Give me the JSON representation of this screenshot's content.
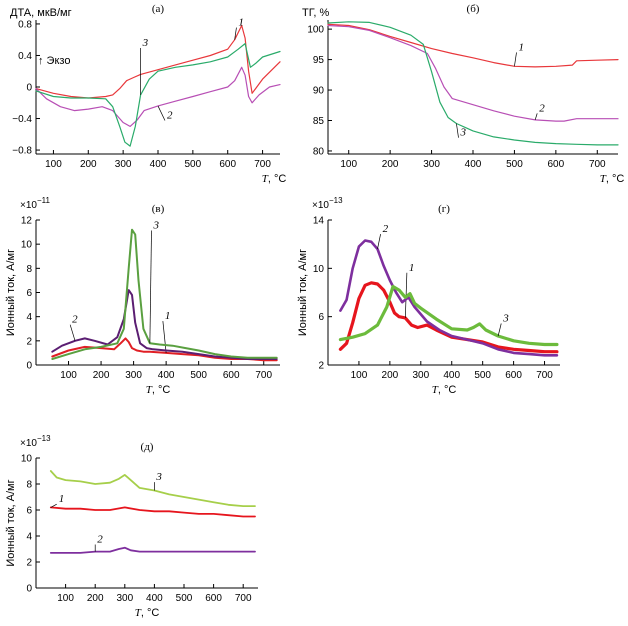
{
  "chart_data": [
    {
      "id": "a",
      "type": "line",
      "panel_label": "(а)",
      "ylabel": "ДТА, мкВ/мг",
      "xlabel_var": "T",
      "xlabel_unit": ", °C",
      "annotation": "↑ Экзо",
      "xlim": [
        50,
        750
      ],
      "ylim": [
        -0.85,
        0.85
      ],
      "xticks": [
        100,
        200,
        300,
        400,
        500,
        600,
        700
      ],
      "yticks": [
        -0.8,
        -0.4,
        0,
        0.4,
        0.8
      ],
      "ytick_labels": [
        "−0.8",
        "−0.4",
        "0",
        "0.4",
        "0.8"
      ],
      "series": [
        {
          "label": "1",
          "color": "#e8373b",
          "width": 1.2,
          "label_pos": [
            625,
            0.78
          ],
          "x": [
            50,
            100,
            150,
            200,
            250,
            270,
            290,
            310,
            330,
            350,
            400,
            450,
            500,
            550,
            600,
            620,
            640,
            650,
            660,
            670,
            680,
            700,
            750
          ],
          "y": [
            -0.02,
            -0.08,
            -0.12,
            -0.14,
            -0.12,
            -0.1,
            -0.02,
            0.08,
            0.12,
            0.16,
            0.22,
            0.28,
            0.34,
            0.4,
            0.48,
            0.6,
            0.78,
            0.62,
            0.2,
            -0.08,
            -0.02,
            0.1,
            0.32
          ]
        },
        {
          "label": "2",
          "color": "#b84fb5",
          "width": 1.2,
          "label_pos": [
            420,
            -0.4
          ],
          "x": [
            50,
            80,
            120,
            160,
            200,
            240,
            270,
            300,
            320,
            340,
            360,
            400,
            450,
            500,
            550,
            600,
            620,
            640,
            650,
            660,
            670,
            690,
            720,
            750
          ],
          "y": [
            -0.02,
            -0.15,
            -0.25,
            -0.3,
            -0.28,
            -0.25,
            -0.3,
            -0.45,
            -0.5,
            -0.42,
            -0.3,
            -0.24,
            -0.18,
            -0.12,
            -0.06,
            0.0,
            0.08,
            0.25,
            0.15,
            -0.12,
            -0.2,
            -0.1,
            0.0,
            0.03
          ]
        },
        {
          "label": "3",
          "color": "#2aab6a",
          "width": 1.2,
          "label_pos": [
            350,
            0.52
          ],
          "x": [
            50,
            100,
            150,
            200,
            250,
            270,
            290,
            305,
            320,
            335,
            350,
            375,
            400,
            450,
            500,
            550,
            600,
            630,
            650,
            665,
            680,
            700,
            750
          ],
          "y": [
            -0.05,
            -0.12,
            -0.14,
            -0.14,
            -0.15,
            -0.25,
            -0.5,
            -0.7,
            -0.75,
            -0.5,
            -0.1,
            0.1,
            0.2,
            0.25,
            0.28,
            0.32,
            0.38,
            0.48,
            0.55,
            0.25,
            0.3,
            0.38,
            0.45
          ]
        }
      ]
    },
    {
      "id": "b",
      "type": "line",
      "panel_label": "(б)",
      "ylabel": "ТГ, %",
      "xlabel_var": "T",
      "xlabel_unit": ", °C",
      "xlim": [
        50,
        750
      ],
      "ylim": [
        79.5,
        101.5
      ],
      "xticks": [
        100,
        200,
        300,
        400,
        500,
        600,
        700
      ],
      "yticks": [
        80,
        85,
        90,
        95,
        100
      ],
      "ytick_labels": [
        "80",
        "85",
        "90",
        "95",
        "100"
      ],
      "series": [
        {
          "label": "1",
          "color": "#e8373b",
          "width": 1.2,
          "label_pos": [
            505,
            96.5
          ],
          "x": [
            50,
            100,
            150,
            200,
            250,
            300,
            350,
            400,
            450,
            500,
            550,
            600,
            640,
            650,
            700,
            750
          ],
          "y": [
            100.8,
            100.6,
            99.9,
            98.8,
            97.8,
            96.8,
            96.0,
            95.3,
            94.5,
            93.9,
            93.8,
            93.9,
            94.1,
            94.8,
            94.9,
            95.0
          ]
        },
        {
          "label": "2",
          "color": "#b84fb5",
          "width": 1.2,
          "label_pos": [
            555,
            86.5
          ],
          "x": [
            50,
            100,
            150,
            200,
            250,
            290,
            310,
            330,
            350,
            400,
            450,
            500,
            550,
            600,
            620,
            650,
            700,
            750
          ],
          "y": [
            100.6,
            100.4,
            99.8,
            98.6,
            97.3,
            96.0,
            93.5,
            90.5,
            88.6,
            87.6,
            86.6,
            85.7,
            85.1,
            84.9,
            84.9,
            85.3,
            85.3,
            85.3
          ]
        },
        {
          "label": "3",
          "color": "#2aab6a",
          "width": 1.2,
          "label_pos": [
            365,
            82.5
          ],
          "x": [
            50,
            100,
            150,
            200,
            250,
            280,
            300,
            320,
            340,
            360,
            400,
            450,
            500,
            550,
            600,
            650,
            700,
            750
          ],
          "y": [
            101.0,
            101.2,
            101.1,
            100.3,
            99.0,
            97.5,
            93.0,
            88.0,
            85.5,
            84.5,
            83.3,
            82.3,
            81.8,
            81.4,
            81.2,
            81.1,
            81.0,
            81.0
          ]
        }
      ]
    },
    {
      "id": "v",
      "type": "line",
      "panel_label": "(в)",
      "ylabel": "Ионный ток, А/мг",
      "scale_label": "×10",
      "scale_exp": "−11",
      "xlabel_var": "T",
      "xlabel_unit": ", °C",
      "xlim": [
        0,
        750
      ],
      "ylim": [
        0,
        12
      ],
      "xticks": [
        100,
        200,
        300,
        400,
        500,
        600,
        700
      ],
      "yticks": [
        0,
        2,
        4,
        6,
        8,
        10,
        12
      ],
      "ytick_labels": [
        "0",
        "2",
        "4",
        "6",
        "8",
        "10",
        "12"
      ],
      "series": [
        {
          "label": "1",
          "color": "#e01f25",
          "width": 2.0,
          "label_pos": [
            390,
            3.8
          ],
          "x": [
            50,
            100,
            150,
            200,
            240,
            260,
            275,
            285,
            295,
            310,
            330,
            350,
            400,
            450,
            500,
            550,
            600,
            650,
            700,
            740
          ],
          "y": [
            0.7,
            1.2,
            1.5,
            1.4,
            1.3,
            1.8,
            2.2,
            1.9,
            1.4,
            1.2,
            1.1,
            1.1,
            1.0,
            0.9,
            0.8,
            0.6,
            0.5,
            0.5,
            0.4,
            0.4
          ]
        },
        {
          "label": "2",
          "color": "#5b1e72",
          "width": 2.0,
          "label_pos": [
            105,
            3.5
          ],
          "x": [
            50,
            80,
            120,
            150,
            180,
            220,
            250,
            270,
            285,
            295,
            305,
            320,
            340,
            360,
            400,
            450,
            500,
            550,
            600,
            650,
            700,
            740
          ],
          "y": [
            1.1,
            1.6,
            2.0,
            2.2,
            2.0,
            1.7,
            2.3,
            3.8,
            6.2,
            5.8,
            3.5,
            1.8,
            1.4,
            1.3,
            1.2,
            1.1,
            0.9,
            0.7,
            0.6,
            0.5,
            0.5,
            0.5
          ]
        },
        {
          "label": "3",
          "color": "#5aa040",
          "width": 2.0,
          "label_pos": [
            355,
            11.3
          ],
          "x": [
            50,
            100,
            150,
            200,
            250,
            270,
            285,
            295,
            305,
            315,
            330,
            350,
            380,
            420,
            460,
            500,
            550,
            600,
            650,
            700,
            740
          ],
          "y": [
            0.5,
            0.9,
            1.3,
            1.5,
            1.8,
            3.0,
            8.0,
            11.2,
            10.8,
            7.0,
            3.0,
            1.8,
            1.7,
            1.6,
            1.4,
            1.2,
            0.9,
            0.7,
            0.6,
            0.6,
            0.6
          ]
        }
      ]
    },
    {
      "id": "g",
      "type": "line",
      "panel_label": "(г)",
      "ylabel": "Ионный ток, А/мг",
      "scale_label": "×10",
      "scale_exp": "−13",
      "xlabel_var": "T",
      "xlabel_unit": ", °C",
      "xlim": [
        0,
        750
      ],
      "ylim": [
        2,
        14
      ],
      "xticks": [
        100,
        200,
        300,
        400,
        500,
        600,
        700
      ],
      "yticks": [
        2,
        6,
        10,
        14
      ],
      "ytick_labels": [
        "2",
        "6",
        "10",
        "14"
      ],
      "series": [
        {
          "label": "1",
          "color": "#e6151d",
          "width": 3.2,
          "label_pos": [
            255,
            9.8
          ],
          "x": [
            40,
            60,
            80,
            100,
            120,
            140,
            160,
            180,
            200,
            215,
            230,
            250,
            270,
            290,
            320,
            350,
            400,
            450,
            500,
            550,
            600,
            650,
            700,
            740
          ],
          "y": [
            3.3,
            3.8,
            5.5,
            7.5,
            8.6,
            8.8,
            8.7,
            8.2,
            7.2,
            6.3,
            6.0,
            5.9,
            5.3,
            5.1,
            5.3,
            4.9,
            4.3,
            4.1,
            3.9,
            3.5,
            3.3,
            3.2,
            3.1,
            3.1
          ]
        },
        {
          "label": "2",
          "color": "#7e2f9e",
          "width": 2.6,
          "label_pos": [
            170,
            13.0
          ],
          "x": [
            40,
            60,
            80,
            100,
            120,
            140,
            160,
            180,
            200,
            220,
            240,
            260,
            280,
            320,
            360,
            400,
            450,
            500,
            550,
            600,
            650,
            700,
            740
          ],
          "y": [
            6.5,
            7.4,
            10.0,
            11.8,
            12.3,
            12.2,
            11.6,
            10.2,
            9.0,
            8.0,
            7.2,
            7.6,
            6.8,
            5.6,
            4.9,
            4.4,
            4.1,
            3.8,
            3.3,
            3.0,
            2.9,
            2.8,
            2.8
          ]
        },
        {
          "label": "3",
          "color": "#6cbb3c",
          "width": 3.2,
          "label_pos": [
            560,
            5.6
          ],
          "x": [
            40,
            80,
            120,
            160,
            190,
            210,
            230,
            250,
            265,
            280,
            300,
            350,
            400,
            450,
            470,
            490,
            510,
            550,
            600,
            650,
            700,
            740
          ],
          "y": [
            4.1,
            4.3,
            4.6,
            5.3,
            6.8,
            8.5,
            8.2,
            7.6,
            7.9,
            7.1,
            6.7,
            5.8,
            5.0,
            4.9,
            5.1,
            5.4,
            4.9,
            4.4,
            4.0,
            3.8,
            3.7,
            3.7
          ]
        }
      ]
    },
    {
      "id": "d",
      "type": "line",
      "panel_label": "(д)",
      "ylabel": "Ионный ток, А/мг",
      "scale_label": "×10",
      "scale_exp": "−13",
      "xlabel_var": "T",
      "xlabel_unit": ", °C",
      "xlim": [
        0,
        750
      ],
      "ylim": [
        0,
        10
      ],
      "xticks": [
        100,
        200,
        300,
        400,
        500,
        600,
        700
      ],
      "yticks": [
        0,
        2,
        4,
        6,
        8,
        10
      ],
      "ytick_labels": [
        "0",
        "2",
        "4",
        "6",
        "8",
        "10"
      ],
      "series": [
        {
          "label": "1",
          "color": "#e6151d",
          "width": 1.8,
          "label_pos": [
            70,
            6.6
          ],
          "x": [
            50,
            100,
            150,
            200,
            250,
            300,
            350,
            400,
            450,
            500,
            550,
            600,
            650,
            700,
            740
          ],
          "y": [
            6.2,
            6.1,
            6.1,
            6.0,
            6.0,
            6.2,
            6.0,
            5.9,
            5.9,
            5.8,
            5.7,
            5.7,
            5.6,
            5.5,
            5.5
          ]
        },
        {
          "label": "2",
          "color": "#7e2f9e",
          "width": 1.8,
          "label_pos": [
            200,
            3.5
          ],
          "x": [
            50,
            100,
            150,
            200,
            250,
            280,
            300,
            320,
            350,
            400,
            450,
            500,
            550,
            600,
            650,
            700,
            740
          ],
          "y": [
            2.7,
            2.7,
            2.7,
            2.8,
            2.8,
            3.0,
            3.1,
            2.9,
            2.8,
            2.8,
            2.8,
            2.8,
            2.8,
            2.8,
            2.8,
            2.8,
            2.8
          ]
        },
        {
          "label": "3",
          "color": "#a6cf4a",
          "width": 1.8,
          "label_pos": [
            400,
            8.3
          ],
          "x": [
            50,
            70,
            100,
            150,
            200,
            250,
            280,
            300,
            320,
            350,
            400,
            450,
            500,
            550,
            600,
            650,
            700,
            740
          ],
          "y": [
            9.0,
            8.5,
            8.3,
            8.2,
            8.0,
            8.1,
            8.4,
            8.7,
            8.3,
            7.7,
            7.5,
            7.2,
            7.0,
            6.8,
            6.6,
            6.4,
            6.3,
            6.3
          ]
        }
      ]
    }
  ]
}
